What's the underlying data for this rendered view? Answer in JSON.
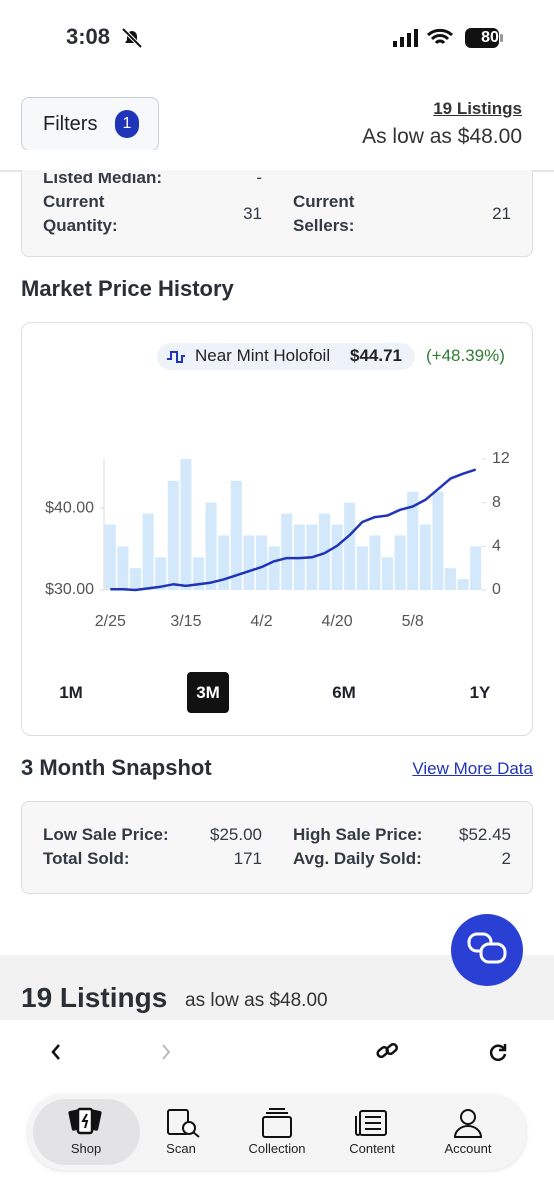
{
  "status_bar": {
    "time": "3:08",
    "battery": "80"
  },
  "header": {
    "filters_label": "Filters",
    "filter_count": "1",
    "listings_link": "19 Listings",
    "low_price": "As low as $48.00"
  },
  "stats": {
    "listed_median_label": "Listed Median:",
    "listed_median_value": "-",
    "quantity_label": "Current Quantity:",
    "quantity_value": "31",
    "sellers_label": "Current Sellers:",
    "sellers_value": "21"
  },
  "price_section_title": "Market Price History",
  "chart_data": {
    "type": "combo",
    "legend": {
      "price": "$44.71",
      "change": "(+48.39%)"
    },
    "categories": [
      "2/25",
      null,
      null,
      null,
      null,
      null,
      "3/15",
      null,
      null,
      null,
      null,
      null,
      "4/2",
      null,
      null,
      null,
      null,
      null,
      "4/20",
      null,
      null,
      null,
      null,
      null,
      "5/8",
      null,
      null,
      null,
      null,
      null
    ],
    "series": [
      {
        "type": "bar",
        "axis": "y2",
        "color": "#d3e9fb",
        "values": [
          6,
          4,
          2,
          7,
          3,
          10,
          12,
          3,
          8,
          5,
          10,
          5,
          5,
          4,
          7,
          6,
          6,
          7,
          6,
          8,
          4,
          5,
          3,
          5,
          9,
          6,
          9,
          2,
          1,
          4
        ]
      },
      {
        "type": "line",
        "name": "Near Mint Holofoil",
        "color": "#1f34b8",
        "values": [
          30.1,
          30.1,
          30,
          30.2,
          30.4,
          30.7,
          30.5,
          30.7,
          30.9,
          31.3,
          31.8,
          32.3,
          32.8,
          33.5,
          33.9,
          33.9,
          34,
          34.5,
          35.4,
          36.7,
          38.3,
          38.9,
          39.1,
          39.8,
          40.2,
          41,
          42.3,
          43.6,
          44.2,
          44.7
        ]
      }
    ],
    "ylim": [
      30,
      46
    ],
    "yticks": [
      {
        "value": 30,
        "label": "$30.00"
      },
      {
        "value": 40,
        "label": "$40.00"
      }
    ],
    "y2lim": [
      0,
      12
    ],
    "y2ticks": [
      0,
      4,
      8,
      12
    ],
    "range_buttons": [
      "1M",
      "3M",
      "6M",
      "1Y"
    ],
    "selected_range_index": 1
  },
  "snapshot": {
    "title": "3 Month Snapshot",
    "link": "View More Data",
    "low_label": "Low Sale Price:",
    "low_value": "$25.00",
    "high_label": "High Sale Price:",
    "high_value": "$52.45",
    "sold_label": "Total Sold:",
    "sold_value": "171",
    "daily_label": "Avg. Daily Sold:",
    "daily_value": "2"
  },
  "listings": {
    "title": "19 Listings",
    "subtitle": "as low as $48.00"
  },
  "tab_bar": [
    "Shop",
    "Scan",
    "Collection",
    "Content",
    "Account"
  ]
}
